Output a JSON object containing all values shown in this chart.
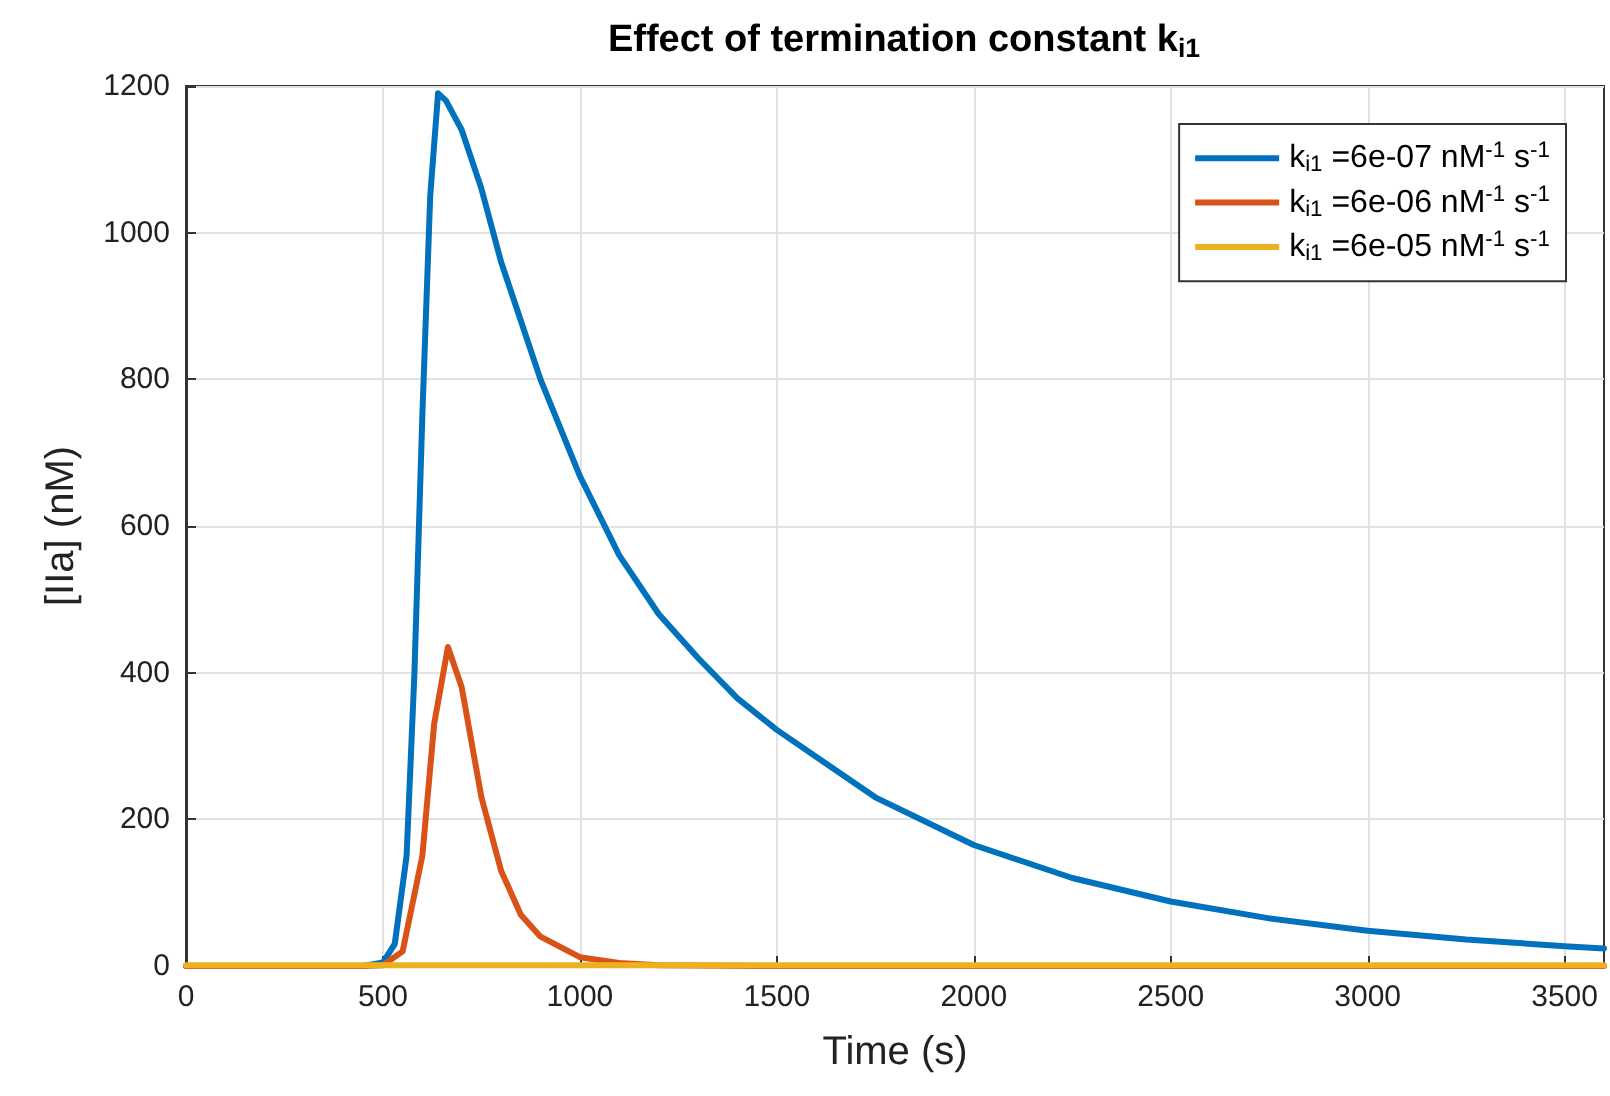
{
  "chart_data": {
    "type": "line",
    "title": "Effect of termination constant k$_{i1}$",
    "xlabel": "Time (s)",
    "ylabel": "[IIa] (nM)",
    "xlim": [
      0,
      3600
    ],
    "xticks": [
      0,
      500,
      1000,
      1500,
      2000,
      2500,
      3000,
      3500
    ],
    "ylim": [
      0,
      1200
    ],
    "yticks": [
      0,
      200,
      400,
      600,
      800,
      1000,
      1200
    ],
    "grid": true,
    "legend": "top right",
    "series": [
      {
        "name": "k$_{i1}$ =6e-07 nM$^{-1}$ s$^{-1}$",
        "color": "#0072bd",
        "x": [
          0,
          450,
          500,
          530,
          560,
          580,
          600,
          620,
          640,
          660,
          680,
          700,
          750,
          800,
          900,
          1000,
          1100,
          1200,
          1300,
          1400,
          1500,
          1750,
          2000,
          2250,
          2500,
          2750,
          3000,
          3250,
          3500,
          3600
        ],
        "values": [
          0,
          0,
          5,
          30,
          150,
          400,
          750,
          1050,
          1190,
          1180,
          1160,
          1140,
          1060,
          960,
          800,
          668,
          560,
          480,
          420,
          365,
          322,
          230,
          165,
          120,
          88,
          65,
          48,
          36,
          27,
          24
        ]
      },
      {
        "name": "k$_{i1}$ =6e-06 nM$^{-1}$ s$^{-1}$",
        "color": "#d95319",
        "x": [
          0,
          450,
          500,
          550,
          600,
          630,
          665,
          700,
          750,
          800,
          850,
          900,
          1000,
          1100,
          1200,
          1500,
          3600
        ],
        "values": [
          0,
          0,
          1,
          20,
          150,
          330,
          435,
          380,
          230,
          130,
          70,
          40,
          12,
          4,
          1,
          0,
          0
        ]
      },
      {
        "name": "k$_{i1}$ =6e-05 nM$^{-1}$ s$^{-1}$",
        "color": "#edb120",
        "x": [
          0,
          3600
        ],
        "values": [
          1,
          1
        ]
      }
    ]
  }
}
